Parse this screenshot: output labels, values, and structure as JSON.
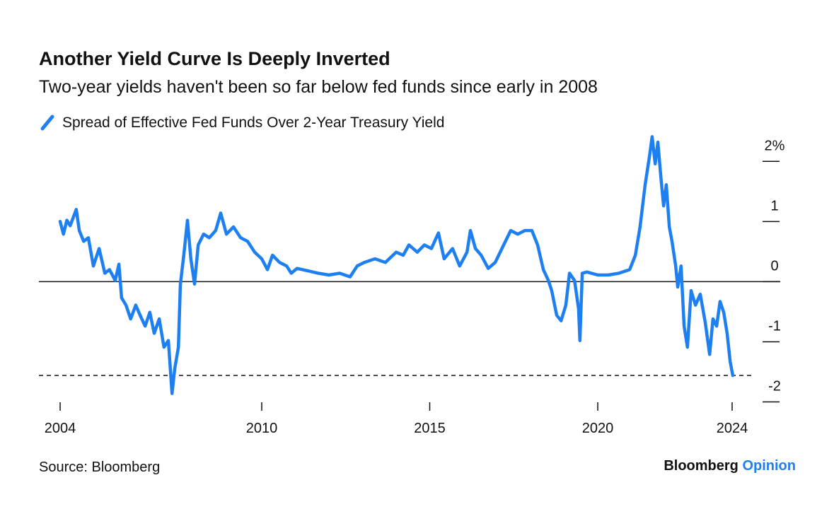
{
  "chart_data": {
    "type": "line",
    "title": "Another Yield Curve Is Deeply Inverted",
    "subtitle": "Two-year yields haven't been so far below fed funds since early in 2008",
    "source": "Source: Bloomberg",
    "brand": [
      "Bloomberg",
      "Opinion"
    ],
    "xlim": [
      2004,
      2024
    ],
    "xticks": [
      2004,
      2010,
      2015,
      2020,
      2024
    ],
    "ylim": [
      -2.1,
      2.45
    ],
    "yticks": [
      -2,
      -1,
      0,
      1,
      {
        "value": 2,
        "label": "2%"
      }
    ],
    "zero_line": true,
    "latest_reference_line": true,
    "series": [
      {
        "name": "Spread of Effective Fed Funds Over 2-Year Treasury Yield",
        "color": "#1e7ff0",
        "x": [
          2004.0,
          2004.1,
          2004.2,
          2004.3,
          2004.48,
          2004.57,
          2004.7,
          2004.84,
          2004.99,
          2005.16,
          2005.33,
          2005.47,
          2005.64,
          2005.75,
          2005.83,
          2005.96,
          2006.1,
          2006.25,
          2006.38,
          2006.53,
          2006.67,
          2006.8,
          2006.95,
          2007.09,
          2007.22,
          2007.33,
          2007.41,
          2007.52,
          2007.58,
          2007.68,
          2007.79,
          2007.89,
          2008.0,
          2008.11,
          2008.27,
          2008.44,
          2008.63,
          2008.78,
          2008.95,
          2009.16,
          2009.37,
          2009.58,
          2009.79,
          2010.0,
          2010.17,
          2010.32,
          2010.53,
          2010.74,
          2010.88,
          2011.05,
          2011.37,
          2011.68,
          2012.0,
          2012.32,
          2012.63,
          2012.84,
          2013.05,
          2013.37,
          2013.68,
          2014.0,
          2014.21,
          2014.38,
          2014.63,
          2014.84,
          2015.05,
          2015.26,
          2015.43,
          2015.68,
          2015.89,
          2016.11,
          2016.21,
          2016.36,
          2016.53,
          2016.74,
          2016.95,
          2017.2,
          2017.41,
          2017.62,
          2017.83,
          2018.04,
          2018.21,
          2018.38,
          2018.53,
          2018.63,
          2018.78,
          2018.91,
          2019.05,
          2019.16,
          2019.31,
          2019.43,
          2019.47,
          2019.54,
          2019.68,
          2020.0,
          2020.32,
          2020.63,
          2020.95,
          2021.12,
          2021.26,
          2021.41,
          2021.54,
          2021.62,
          2021.71,
          2021.79,
          2021.88,
          2021.96,
          2022.04,
          2022.13,
          2022.21,
          2022.32,
          2022.38,
          2022.48,
          2022.57,
          2022.67,
          2022.78,
          2022.91,
          2023.05,
          2023.2,
          2023.33,
          2023.43,
          2023.54,
          2023.64,
          2023.75,
          2023.85,
          2023.94,
          2024.02
        ],
        "values": [
          1.0,
          0.79,
          1.02,
          0.93,
          1.2,
          0.85,
          0.67,
          0.73,
          0.26,
          0.55,
          0.14,
          0.2,
          0.02,
          0.29,
          -0.27,
          -0.39,
          -0.62,
          -0.39,
          -0.56,
          -0.74,
          -0.51,
          -0.86,
          -0.62,
          -1.09,
          -0.98,
          -1.86,
          -1.45,
          -1.09,
          -0.04,
          0.44,
          1.02,
          0.38,
          -0.04,
          0.61,
          0.79,
          0.73,
          0.85,
          1.14,
          0.79,
          0.91,
          0.73,
          0.67,
          0.49,
          0.38,
          0.2,
          0.44,
          0.32,
          0.26,
          0.14,
          0.22,
          0.18,
          0.14,
          0.11,
          0.14,
          0.08,
          0.26,
          0.32,
          0.38,
          0.32,
          0.49,
          0.44,
          0.61,
          0.49,
          0.61,
          0.55,
          0.81,
          0.38,
          0.55,
          0.26,
          0.49,
          0.85,
          0.55,
          0.44,
          0.22,
          0.32,
          0.61,
          0.85,
          0.79,
          0.85,
          0.85,
          0.61,
          0.2,
          0.02,
          -0.15,
          -0.56,
          -0.65,
          -0.39,
          0.14,
          0.02,
          -0.45,
          -0.98,
          0.14,
          0.16,
          0.11,
          0.11,
          0.14,
          0.2,
          0.44,
          0.91,
          1.61,
          2.08,
          2.41,
          1.96,
          2.32,
          1.73,
          1.26,
          1.61,
          0.91,
          0.67,
          0.26,
          -0.09,
          0.26,
          -0.74,
          -1.09,
          -0.15,
          -0.39,
          -0.21,
          -0.68,
          -1.21,
          -0.62,
          -0.74,
          -0.33,
          -0.51,
          -0.86,
          -1.33,
          -1.56
        ]
      }
    ]
  }
}
